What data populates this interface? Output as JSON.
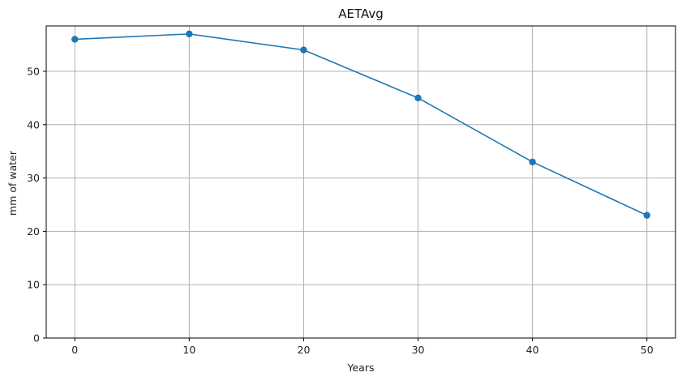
{
  "chart_data": {
    "type": "line",
    "title": "AETAvg",
    "xlabel": "Years",
    "ylabel": "mm of water",
    "x": [
      0,
      10,
      20,
      30,
      40,
      50
    ],
    "series": [
      {
        "values": [
          56,
          57,
          54,
          45,
          33,
          23
        ],
        "color": "#1f77b4",
        "marker": "circle"
      }
    ],
    "xticks": [
      0,
      10,
      20,
      30,
      40,
      50
    ],
    "yticks": [
      0,
      10,
      20,
      30,
      40,
      50
    ],
    "xlim": [
      -2.5,
      52.5
    ],
    "ylim": [
      0,
      58.5
    ],
    "grid": true,
    "grid_color": "#b0b0b0"
  }
}
